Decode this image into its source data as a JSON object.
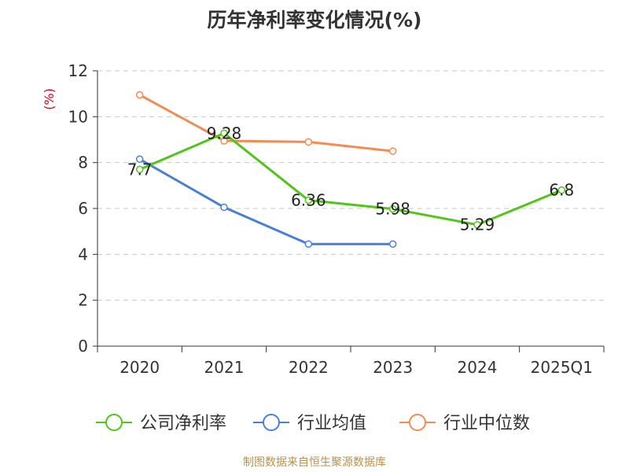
{
  "chart_data": {
    "type": "line",
    "title": "历年净利率变化情况(%)",
    "ylabel": "(%)",
    "categories": [
      "2020",
      "2021",
      "2022",
      "2023",
      "2024",
      "2025Q1"
    ],
    "ylim": [
      0,
      12
    ],
    "yticks": [
      0,
      2,
      4,
      6,
      8,
      10,
      12
    ],
    "grid": true,
    "legend_position": "bottom",
    "series": [
      {
        "name": "公司净利率",
        "color": "#52c41a",
        "values": [
          7.7,
          9.28,
          6.36,
          5.98,
          5.29,
          6.8
        ],
        "labels": [
          "7.7",
          "9.28",
          "6.36",
          "5.98",
          "5.29",
          "6.8"
        ]
      },
      {
        "name": "行业均值",
        "color": "#4a7fd8",
        "values": [
          8.15,
          6.05,
          4.45,
          4.45,
          null,
          null
        ]
      },
      {
        "name": "行业中位数",
        "color": "#f28c55",
        "values": [
          10.95,
          8.95,
          8.9,
          8.5,
          null,
          null
        ]
      }
    ]
  },
  "source_note": "制图数据来自恒生聚源数据库"
}
